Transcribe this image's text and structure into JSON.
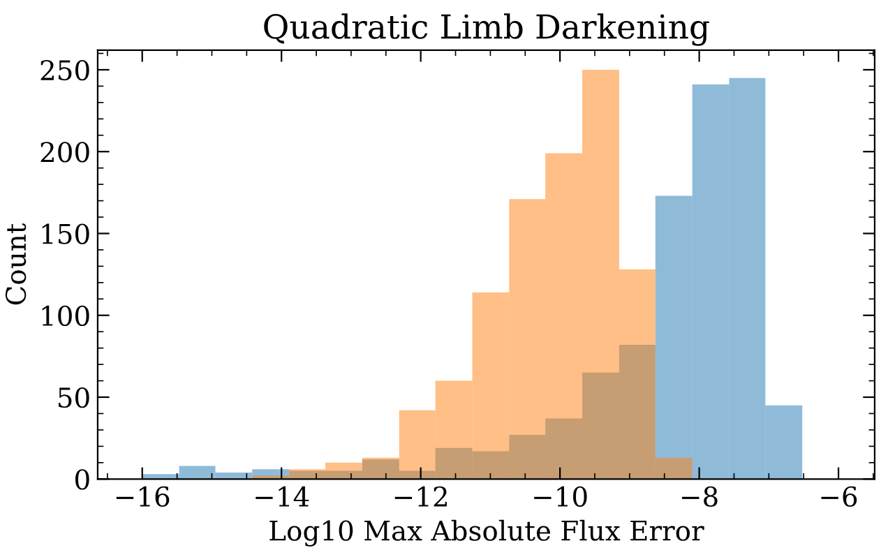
{
  "chart_data": {
    "type": "histogram",
    "title": "Quadratic Limb Darkening",
    "xlabel": "Log10 Max Absolute Flux Error",
    "ylabel": "Count",
    "bins": [
      -16,
      -15.47,
      -14.95,
      -14.42,
      -13.89,
      -13.37,
      -12.84,
      -12.31,
      -11.79,
      -11.26,
      -10.73,
      -10.21,
      -9.68,
      -9.15,
      -8.63,
      -8.1,
      -7.57,
      -7.05,
      -6.52
    ],
    "series": [
      {
        "color": "#1f77b4",
        "values": [
          3,
          8,
          4,
          6,
          5,
          5,
          12,
          5,
          19,
          17,
          27,
          37,
          65,
          82,
          173,
          241,
          245,
          45
        ]
      },
      {
        "color": "#ff7f0e",
        "values": [
          null,
          null,
          null,
          2,
          6,
          10,
          13,
          42,
          60,
          114,
          171,
          199,
          250,
          128,
          13,
          null,
          null,
          null
        ]
      }
    ],
    "xlim": [
      -16.64,
      -5.48
    ],
    "xticks": [
      -16,
      -14,
      -12,
      -10,
      -8,
      -6
    ],
    "ylim": [
      0,
      262
    ],
    "yticks": [
      0,
      50,
      100,
      150,
      200,
      250
    ]
  }
}
